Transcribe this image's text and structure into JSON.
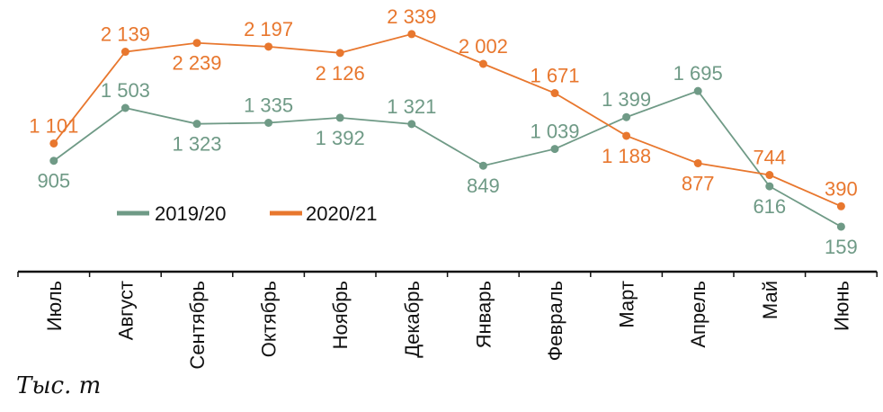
{
  "chart_data": {
    "type": "line",
    "categories": [
      "Июль",
      "Август",
      "Сентябрь",
      "Октябрь",
      "Ноябрь",
      "Декабрь",
      "Январь",
      "Февраль",
      "Март",
      "Апрель",
      "Май",
      "Июнь"
    ],
    "series": [
      {
        "name": "2019/20",
        "color": "#6f9a86",
        "values": [
          905,
          1503,
          1323,
          1335,
          1392,
          1321,
          849,
          1039,
          1399,
          1695,
          616,
          159
        ],
        "labels": [
          "905",
          "1 503",
          "1 323",
          "1 335",
          "1 392",
          "1 321",
          "849",
          "1 039",
          "1 399",
          "1 695",
          "616",
          "159"
        ]
      },
      {
        "name": "2020/21",
        "color": "#e8772e",
        "values": [
          1101,
          2139,
          2239,
          2197,
          2126,
          2339,
          2002,
          1671,
          1188,
          877,
          744,
          390
        ],
        "labels": [
          "1 101",
          "2 139",
          "2 239",
          "2 197",
          "2 126",
          "2 339",
          "2 002",
          "1 671",
          "1 188",
          "877",
          "744",
          "390"
        ]
      }
    ],
    "ylabel": "Тыс. т",
    "legend": "inside-bottom-left",
    "grid": false
  }
}
